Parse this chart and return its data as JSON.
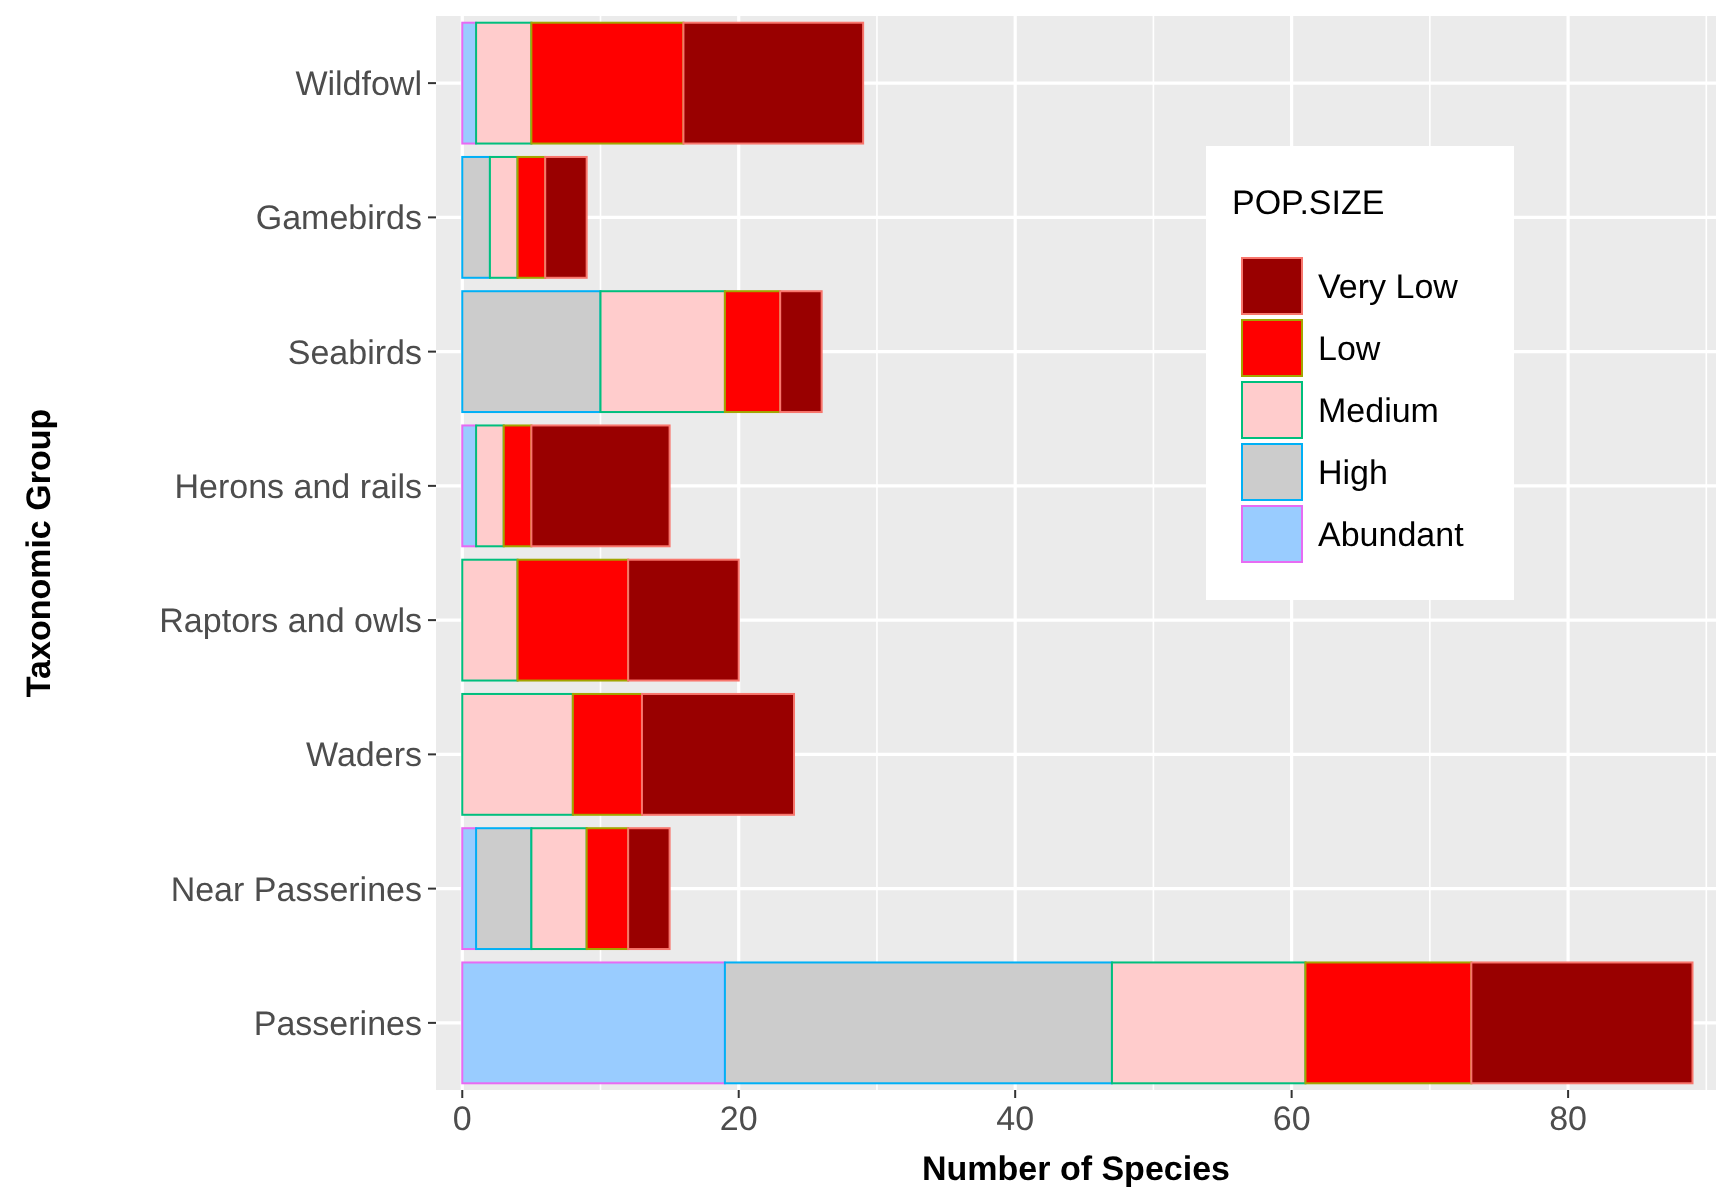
{
  "chart_data": {
    "type": "bar",
    "orientation": "horizontal",
    "stacked": true,
    "xlabel": "Number of Species",
    "ylabel": "Taxonomic Group",
    "legend_title": "POP.SIZE",
    "legend": "top right",
    "grid": true,
    "categories": [
      "Wildfowl",
      "Gamebirds",
      "Seabirds",
      "Herons and rails",
      "Raptors and owls",
      "Waders",
      "Near Passerines",
      "Passerines"
    ],
    "xlim": [
      -1.9,
      90.7
    ],
    "xticks": [
      0,
      20,
      40,
      60,
      80
    ],
    "series": [
      {
        "name": "Abundant",
        "color": "#99ccff",
        "values": [
          1,
          0,
          0,
          1,
          0,
          0,
          1,
          19
        ]
      },
      {
        "name": "High",
        "color": "#cccccc",
        "values": [
          0,
          2,
          10,
          0,
          0,
          0,
          4,
          28
        ]
      },
      {
        "name": "Medium",
        "color": "#ffcccc",
        "values": [
          4,
          2,
          9,
          2,
          4,
          8,
          4,
          14
        ]
      },
      {
        "name": "Low",
        "color": "#ff0000",
        "values": [
          11,
          2,
          4,
          2,
          8,
          5,
          3,
          12
        ]
      },
      {
        "name": "Very Low",
        "color": "#990000",
        "values": [
          13,
          3,
          3,
          10,
          8,
          11,
          3,
          16
        ]
      }
    ]
  }
}
